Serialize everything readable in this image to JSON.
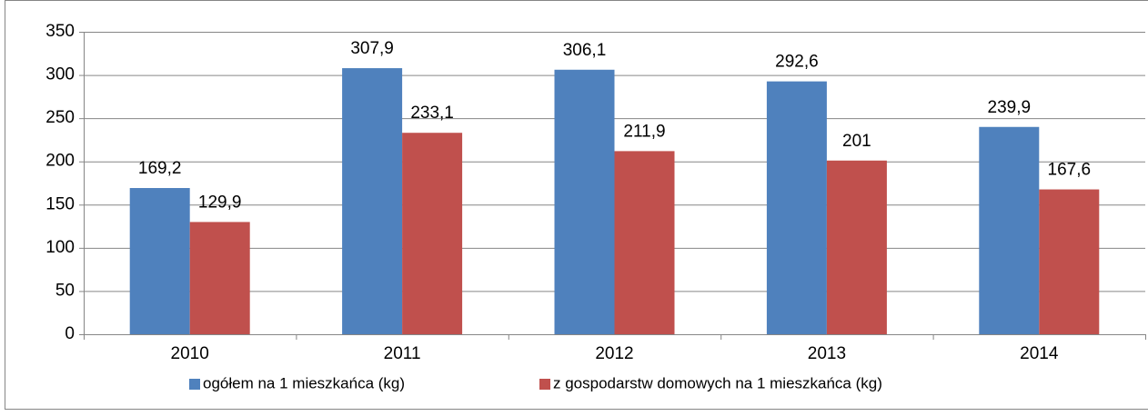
{
  "chart_data": {
    "type": "bar",
    "categories": [
      "2010",
      "2011",
      "2012",
      "2013",
      "2014"
    ],
    "series": [
      {
        "name": "ogółem na 1 mieszkańca (kg)",
        "color": "#4f81bd",
        "values": [
          169.2,
          307.9,
          306.1,
          292.6,
          239.9
        ],
        "value_labels": [
          "169,2",
          "307,9",
          "306,1",
          "292,6",
          "239,9"
        ]
      },
      {
        "name": "z gospodarstw domowych na 1 mieszkańca (kg)",
        "color": "#c0504d",
        "values": [
          129.9,
          233.1,
          211.9,
          201,
          167.6
        ],
        "value_labels": [
          "129,9",
          "233,1",
          "211,9",
          "201",
          "167,6"
        ]
      }
    ],
    "ylim": [
      0,
      350
    ],
    "yticks": [
      0,
      50,
      100,
      150,
      200,
      250,
      300,
      350
    ],
    "grid": true,
    "legend": "bottom"
  }
}
